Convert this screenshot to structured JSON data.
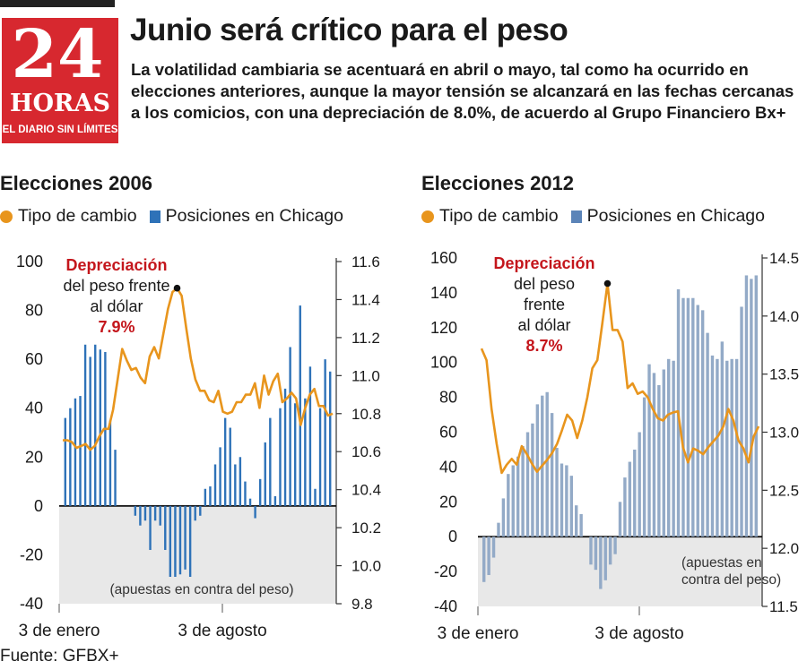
{
  "header": {
    "logo": {
      "number": "24",
      "word": "HORAS",
      "tagline": "EL DIARIO SIN LÍMITES"
    },
    "headline": "Junio será crítico para el peso",
    "dek": "La volatilidad cambiaria se acentuará en abril o mayo, tal como ha ocurrido en elecciones anteriores, aunque la mayor tensión se alcanzará en las fechas cercanas a los comicios, con una depreciación de 8.0%, de acuerdo al Grupo Financiero Bx+"
  },
  "colors": {
    "line": "#e8951d",
    "bar2006": "#2e72b8",
    "bar2012": "#93aac7",
    "negative_band": "#e8e8e8",
    "callout": "#c4161c",
    "logo_red": "#d7282f"
  },
  "legend": {
    "line_label": "Tipo de cambio",
    "bar_label": "Posiciones en Chicago"
  },
  "source": "Fuente: GFBX+",
  "chart_data": [
    {
      "type": "bar",
      "title": "Elecciones 2006",
      "x_tick_labels": [
        "3 de enero",
        "3 de agosto"
      ],
      "left_axis": {
        "ticks": [
          -40,
          -20,
          0,
          20,
          40,
          60,
          80,
          100
        ],
        "range": [
          -40,
          100
        ]
      },
      "right_axis": {
        "ticks": [
          "9.8",
          "10.0",
          "10.2",
          "10.4",
          "10.6",
          "10.8",
          "11.0",
          "11.2",
          "11.4",
          "11.6"
        ],
        "range": [
          9.8,
          11.6
        ]
      },
      "bars": [
        36,
        40,
        44,
        45,
        66,
        61,
        66,
        64,
        63,
        35,
        23,
        0,
        0,
        0,
        -4,
        -8,
        -6,
        -18,
        -6,
        -8,
        -18,
        -29,
        -29,
        -28,
        -26,
        -29,
        -6,
        -4,
        7,
        8,
        17,
        24,
        36,
        32,
        17,
        20,
        10,
        3,
        -5,
        11,
        26,
        36,
        4,
        40,
        48,
        65,
        42,
        82,
        44,
        57,
        7,
        40,
        60,
        55
      ],
      "line": [
        10.66,
        10.66,
        10.65,
        10.62,
        10.63,
        10.64,
        10.61,
        10.63,
        10.68,
        10.72,
        10.72,
        10.82,
        10.98,
        11.14,
        11.08,
        11.03,
        11.04,
        10.99,
        10.96,
        11.1,
        11.15,
        11.09,
        11.22,
        11.35,
        11.44,
        11.46,
        11.42,
        11.25,
        11.09,
        10.98,
        10.92,
        10.92,
        10.87,
        10.86,
        10.92,
        10.81,
        10.8,
        10.81,
        10.86,
        10.86,
        10.9,
        10.9,
        10.96,
        10.83,
        11.0,
        10.9,
        10.97,
        11.01,
        10.86,
        10.88,
        10.91,
        10.88,
        10.74,
        10.83,
        10.9,
        10.93,
        10.84,
        10.84,
        10.79,
        10.8
      ],
      "callout": {
        "title": "Depreciación",
        "lines": [
          "del peso frente",
          "al dólar"
        ],
        "value": "7.9%"
      },
      "negative_note": "(apuestas en contra del peso)"
    },
    {
      "type": "bar",
      "title": "Elecciones 2012",
      "x_tick_labels": [
        "3 de enero",
        "3 de agosto"
      ],
      "left_axis": {
        "ticks": [
          -40,
          -20,
          0,
          20,
          40,
          60,
          80,
          100,
          120,
          140,
          160
        ],
        "range": [
          -40,
          160
        ]
      },
      "right_axis": {
        "ticks": [
          "11.5",
          "12.0",
          "12.5",
          "13.0",
          "13.5",
          "14.0",
          "14.5"
        ],
        "range": [
          11.5,
          14.5
        ]
      },
      "bars": [
        -26,
        -22,
        -12,
        8,
        22,
        36,
        41,
        46,
        52,
        60,
        65,
        76,
        81,
        83,
        71,
        51,
        42,
        41,
        35,
        18,
        13,
        0,
        -16,
        -19,
        -30,
        -25,
        -16,
        -10,
        20,
        34,
        43,
        50,
        60,
        80,
        99,
        94,
        87,
        96,
        102,
        101,
        142,
        137,
        137,
        137,
        133,
        130,
        117,
        104,
        102,
        112,
        101,
        102,
        102,
        132,
        150,
        148,
        150
      ],
      "line": [
        13.72,
        13.62,
        13.2,
        12.9,
        12.65,
        12.72,
        12.77,
        12.72,
        12.88,
        12.81,
        12.73,
        12.66,
        12.71,
        12.76,
        12.82,
        12.9,
        13.02,
        13.15,
        13.1,
        12.95,
        13.1,
        13.3,
        13.55,
        13.62,
        13.94,
        14.28,
        13.88,
        13.88,
        13.78,
        13.38,
        13.42,
        13.33,
        13.35,
        13.3,
        13.2,
        13.12,
        13.1,
        13.15,
        13.17,
        13.18,
        12.87,
        12.74,
        12.86,
        12.84,
        12.81,
        12.87,
        12.92,
        12.97,
        13.05,
        13.2,
        13.1,
        12.93,
        12.86,
        12.74,
        12.96,
        13.05
      ],
      "callout": {
        "title": "Depreciación",
        "lines": [
          "del peso",
          "frente",
          "al dólar"
        ],
        "value": "8.7%"
      },
      "negative_note": "(apuestas en contra del peso)"
    }
  ]
}
